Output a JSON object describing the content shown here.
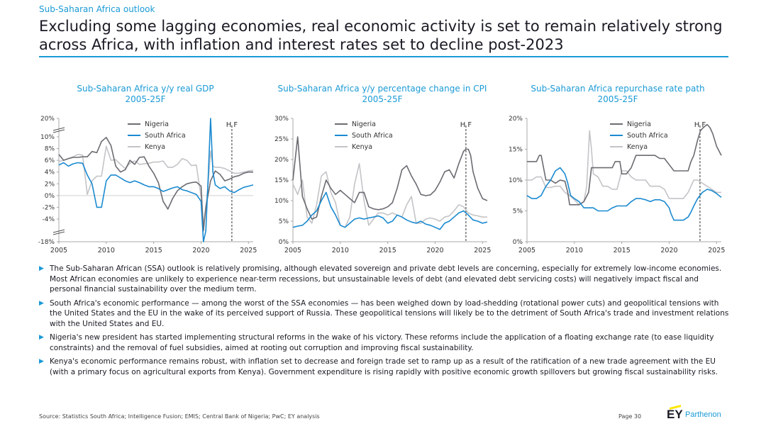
{
  "header": {
    "supertitle": "Sub-Saharan Africa outlook",
    "title": "Excluding some lagging economies, real economic activity is set to remain relatively strong across Africa, with inflation and interest rates set to decline post-2023"
  },
  "colors": {
    "accent": "#1a9ad6",
    "nigeria": "#6b6b72",
    "south_africa": "#1a8ad0",
    "kenya": "#c4c4c8",
    "axis": "#a8a8a8"
  },
  "legend": [
    "Nigeria",
    "South Africa",
    "Kenya"
  ],
  "chart_data": [
    {
      "type": "line",
      "title": "Sub-Saharan Africa y/y real GDP",
      "subtitle": "2005-25F",
      "xlim": [
        2005,
        2025.5
      ],
      "x_ticks": [
        2005,
        2010,
        2015,
        2020,
        2025
      ],
      "y_ticks": [
        "20%",
        "10%",
        "8%",
        "6%",
        "4%",
        "2%",
        "0%",
        "-2%",
        "-4%",
        "-18%"
      ],
      "y_ticks_values": [
        20,
        10,
        8,
        6,
        4,
        2,
        0,
        -2,
        -4,
        -18
      ],
      "y_axis_break": true,
      "forecast_label": "H F",
      "forecast_x": 2023.25,
      "series": [
        {
          "name": "Nigeria",
          "x": [
            2005,
            2005.5,
            2006,
            2006.5,
            2007,
            2007.5,
            2008,
            2008.5,
            2009,
            2009.5,
            2010,
            2010.5,
            2011,
            2011.5,
            2012,
            2012.5,
            2013,
            2013.5,
            2014,
            2014.5,
            2015,
            2015.5,
            2016,
            2016.5,
            2017,
            2017.5,
            2018,
            2018.5,
            2019,
            2019.5,
            2020,
            2020.25,
            2020.5,
            2020.75,
            2021,
            2021.5,
            2022,
            2022.5,
            2023,
            2023.5,
            2024,
            2024.5,
            2025,
            2025.5
          ],
          "y": [
            7,
            6,
            6.3,
            6.5,
            6.5,
            6.6,
            6.6,
            7.5,
            7.3,
            9.2,
            9.9,
            8.5,
            5,
            4,
            4.4,
            6,
            5.3,
            6.5,
            6.6,
            5,
            3.8,
            2.2,
            -1,
            -2.3,
            -0.5,
            0.8,
            1.5,
            2,
            2.2,
            2.3,
            1.6,
            -6,
            -2,
            0.2,
            2.5,
            4.2,
            3.6,
            2.5,
            2.8,
            3.2,
            3.4,
            3.8,
            4,
            4
          ]
        },
        {
          "name": "South Africa",
          "x": [
            2005,
            2005.5,
            2006,
            2006.5,
            2007,
            2007.5,
            2008,
            2008.5,
            2009,
            2009.5,
            2010,
            2010.5,
            2011,
            2011.5,
            2012,
            2012.5,
            2013,
            2013.5,
            2014,
            2014.5,
            2015,
            2015.5,
            2016,
            2016.5,
            2017,
            2017.5,
            2018,
            2018.5,
            2019,
            2019.5,
            2020,
            2020.25,
            2020.5,
            2020.75,
            2021,
            2021.25,
            2021.5,
            2022,
            2022.5,
            2023,
            2023.5,
            2024,
            2024.5,
            2025,
            2025.5
          ],
          "y": [
            5.2,
            5.6,
            5,
            5.4,
            5.6,
            5.5,
            3.5,
            2,
            -2,
            -2,
            2.5,
            3.5,
            3.5,
            3,
            2.5,
            2.2,
            2.5,
            2.2,
            1.8,
            1.5,
            1.5,
            1.2,
            0.7,
            1,
            1.3,
            1.5,
            1,
            0.8,
            0.5,
            0.2,
            -1,
            -17,
            -6,
            3,
            19,
            4,
            1.8,
            1.2,
            1.5,
            0.8,
            0.5,
            1,
            1.4,
            1.6,
            1.8
          ]
        },
        {
          "name": "Kenya",
          "x": [
            2005,
            2005.5,
            2006,
            2006.5,
            2007,
            2007.5,
            2008,
            2008.5,
            2009,
            2009.5,
            2010,
            2010.5,
            2011,
            2011.5,
            2012,
            2012.5,
            2013,
            2013.5,
            2014,
            2014.5,
            2015,
            2015.5,
            2016,
            2016.5,
            2017,
            2017.5,
            2018,
            2018.5,
            2019,
            2019.5,
            2020,
            2020.25,
            2020.5,
            2020.75,
            2021,
            2021.25,
            2021.5,
            2022,
            2022.5,
            2023,
            2023.5,
            2024,
            2024.5,
            2025,
            2025.5
          ],
          "y": [
            5.8,
            6,
            6.3,
            6.6,
            7,
            6.9,
            0.2,
            2.5,
            3.3,
            3.3,
            8.4,
            6,
            6.1,
            5.3,
            4.6,
            5.5,
            5.9,
            5.3,
            5.4,
            5.5,
            5.7,
            5.7,
            5.9,
            4.8,
            4.8,
            5.3,
            6.3,
            6,
            5.1,
            5.2,
            -0.3,
            -5,
            -2,
            2,
            7.6,
            5,
            4.8,
            4.8,
            4.6,
            4.2,
            3.8,
            3.8,
            4,
            4.2,
            4.3
          ]
        }
      ]
    },
    {
      "type": "line",
      "title": "Sub-Saharan Africa y/y percentage change in CPI",
      "subtitle": "2005-25F",
      "xlim": [
        2005,
        2025.5
      ],
      "x_ticks": [
        2005,
        2010,
        2015,
        2020,
        2025
      ],
      "y_ticks": [
        "0%",
        "5%",
        "10%",
        "15%",
        "20%",
        "25%",
        "30%"
      ],
      "y_ticks_values": [
        0,
        5,
        10,
        15,
        20,
        25,
        30
      ],
      "ylim": [
        0,
        30
      ],
      "forecast_label": "H F",
      "forecast_x": 2023.25,
      "series": [
        {
          "name": "Nigeria",
          "x": [
            2005,
            2005.5,
            2006,
            2006.5,
            2007,
            2007.5,
            2008,
            2008.5,
            2009,
            2009.5,
            2010,
            2010.5,
            2011,
            2011.5,
            2012,
            2012.5,
            2013,
            2013.5,
            2014,
            2014.5,
            2015,
            2015.5,
            2016,
            2016.5,
            2017,
            2017.5,
            2018,
            2018.5,
            2019,
            2019.5,
            2020,
            2020.5,
            2021,
            2021.5,
            2022,
            2022.5,
            2023,
            2023.25,
            2023.5,
            2023.75,
            2024,
            2024.5,
            2025,
            2025.5
          ],
          "y": [
            15,
            25.5,
            11,
            8,
            5.5,
            6,
            11,
            15,
            13,
            11.5,
            12.5,
            11.5,
            10.5,
            9.5,
            12,
            12,
            8.5,
            8,
            7.8,
            8,
            8.5,
            9.5,
            13,
            17.5,
            18.5,
            16,
            14,
            11.5,
            11.2,
            11.4,
            12.5,
            14.5,
            17,
            17.5,
            15.5,
            19,
            22,
            22.5,
            22.5,
            21,
            17,
            13,
            10.5,
            10
          ]
        },
        {
          "name": "South Africa",
          "x": [
            2005,
            2005.5,
            2006,
            2006.5,
            2007,
            2007.5,
            2008,
            2008.5,
            2009,
            2009.5,
            2010,
            2010.5,
            2011,
            2011.5,
            2012,
            2012.5,
            2013,
            2013.5,
            2014,
            2014.5,
            2015,
            2015.5,
            2016,
            2016.5,
            2017,
            2017.5,
            2018,
            2018.5,
            2019,
            2019.5,
            2020,
            2020.5,
            2021,
            2021.5,
            2022,
            2022.5,
            2023,
            2023.5,
            2024,
            2024.5,
            2025,
            2025.5
          ],
          "y": [
            3.5,
            3.8,
            4,
            5,
            6.5,
            7.5,
            10,
            12,
            8.5,
            6.5,
            4,
            3.5,
            4.5,
            5.5,
            5.8,
            5.5,
            5.8,
            6,
            6.3,
            5.8,
            4.5,
            5,
            6.5,
            6,
            5.3,
            4.8,
            4.5,
            5,
            4.3,
            4,
            3.5,
            3,
            4.5,
            5,
            6,
            7,
            7.5,
            6.5,
            5.3,
            5,
            4.5,
            4.8
          ]
        },
        {
          "name": "Kenya",
          "x": [
            2005,
            2005.5,
            2006,
            2006.5,
            2007,
            2007.5,
            2008,
            2008.5,
            2009,
            2009.5,
            2010,
            2010.5,
            2011,
            2011.5,
            2012,
            2012.5,
            2013,
            2013.5,
            2014,
            2014.5,
            2015,
            2015.5,
            2016,
            2016.5,
            2017,
            2017.5,
            2018,
            2018.5,
            2019,
            2019.5,
            2020,
            2020.5,
            2021,
            2021.5,
            2022,
            2022.5,
            2023,
            2023.5,
            2024,
            2024.5,
            2025,
            2025.5
          ],
          "y": [
            14,
            11.5,
            15,
            6,
            4.5,
            9,
            16,
            17,
            12,
            9.5,
            4,
            3.5,
            6,
            14,
            19,
            10,
            4,
            5.5,
            7,
            7,
            6.5,
            7,
            6.5,
            6,
            9,
            11,
            4.5,
            4.5,
            5.5,
            5.8,
            5.5,
            5,
            6,
            6.3,
            7.5,
            9,
            8.5,
            7,
            6.5,
            6.3,
            6,
            6
          ]
        }
      ]
    },
    {
      "type": "line",
      "title": "Sub-Saharan Africa repurchase rate path",
      "subtitle": "2005-25F",
      "xlim": [
        2005,
        2025.5
      ],
      "x_ticks": [
        2005,
        2010,
        2015,
        2020,
        2025
      ],
      "y_ticks": [
        "0%",
        "5%",
        "10%",
        "15%",
        "20%"
      ],
      "y_ticks_values": [
        0,
        5,
        10,
        15,
        20
      ],
      "ylim": [
        0,
        20
      ],
      "forecast_label": "H F",
      "forecast_x": 2023.25,
      "series": [
        {
          "name": "Nigeria",
          "x": [
            2005,
            2006,
            2006.3,
            2006.5,
            2007,
            2007.5,
            2008,
            2008.5,
            2009,
            2009.3,
            2009.5,
            2010,
            2010.5,
            2011,
            2011.5,
            2011.8,
            2012,
            2012.5,
            2013,
            2013.5,
            2014,
            2014.3,
            2014.8,
            2015,
            2015.5,
            2016,
            2016.5,
            2017,
            2017.5,
            2018,
            2018.5,
            2019,
            2019.5,
            2020,
            2020.5,
            2021,
            2021.5,
            2022,
            2022.3,
            2022.6,
            2023,
            2023.3,
            2023.6,
            2024,
            2024.3,
            2024.6,
            2025,
            2025.5
          ],
          "y": [
            13,
            13,
            14,
            14,
            10,
            10,
            9.5,
            10,
            9.8,
            8,
            6,
            6,
            6,
            6.5,
            8,
            12,
            12,
            12,
            12,
            12,
            12,
            13,
            13,
            11,
            11,
            12,
            14,
            14,
            14,
            14,
            14,
            13.5,
            13.5,
            12.5,
            11.5,
            11.5,
            11.5,
            11.5,
            13,
            14,
            16.5,
            18,
            18.5,
            19,
            18.5,
            17.5,
            15.5,
            14
          ]
        },
        {
          "name": "South Africa",
          "x": [
            2005,
            2005.5,
            2006,
            2006.5,
            2007,
            2007.5,
            2008,
            2008.5,
            2009,
            2009.3,
            2009.6,
            2010,
            2010.5,
            2011,
            2011.5,
            2012,
            2012.5,
            2013,
            2013.5,
            2014,
            2014.5,
            2015,
            2015.5,
            2016,
            2016.5,
            2017,
            2017.5,
            2018,
            2018.5,
            2019,
            2019.5,
            2020,
            2020.2,
            2020.5,
            2021,
            2021.5,
            2022,
            2022.3,
            2022.6,
            2023,
            2023.5,
            2024,
            2024.5,
            2025,
            2025.5
          ],
          "y": [
            7.5,
            7,
            7,
            7.5,
            9,
            10,
            11.5,
            12,
            11,
            9.5,
            7.5,
            7,
            6.5,
            5.5,
            5.5,
            5.5,
            5,
            5,
            5,
            5.5,
            5.8,
            5.8,
            5.8,
            6.5,
            7,
            7,
            6.8,
            6.5,
            6.8,
            6.8,
            6.5,
            5.5,
            4.5,
            3.5,
            3.5,
            3.5,
            4,
            4.8,
            5.8,
            7,
            8,
            8.5,
            8.3,
            7.8,
            7.2
          ]
        },
        {
          "name": "Kenya",
          "x": [
            2005,
            2005.5,
            2006,
            2006.5,
            2007,
            2007.5,
            2008,
            2008.5,
            2009,
            2009.5,
            2010,
            2010.5,
            2011,
            2011.3,
            2011.6,
            2011.8,
            2012,
            2012.5,
            2013,
            2013.5,
            2014,
            2014.5,
            2015,
            2015.5,
            2016,
            2016.5,
            2017,
            2017.5,
            2018,
            2018.5,
            2019,
            2019.5,
            2020,
            2020.5,
            2021,
            2021.5,
            2022,
            2022.3,
            2022.6,
            2023,
            2023.5,
            2024,
            2024.5,
            2025,
            2025.5
          ],
          "y": [
            10,
            10,
            10.5,
            10.5,
            8.8,
            8.8,
            9,
            9,
            8,
            7.5,
            6.8,
            6,
            6.5,
            9,
            18,
            15,
            11,
            10.5,
            9,
            9,
            8.5,
            8.5,
            11.5,
            11.5,
            10.5,
            10,
            10,
            10,
            9,
            9,
            9,
            8.5,
            7,
            7,
            7,
            7,
            8,
            9,
            10,
            10,
            9.5,
            9,
            8.5,
            8,
            8
          ]
        }
      ]
    }
  ],
  "bullets": [
    "The Sub-Saharan African (SSA) outlook is relatively promising, although elevated sovereign and private debt levels are concerning, especially for extremely low-income economies. Most African economies are unlikely to experience near-term recessions, but unsustainable levels of debt (and elevated debt servicing costs) will negatively impact fiscal and personal financial sustainability over the medium term.",
    "South Africa's economic performance — among the worst of the SSA economies — has been weighed down by load-shedding (rotational power cuts) and geopolitical tensions with the United States and the EU in the wake of its perceived support of Russia. These geopolitical tensions will likely be to the detriment of South Africa's trade and investment relations with the United States and EU.",
    "Nigeria's new president has started implementing structural reforms in the wake of his victory. These reforms include the application of a floating exchange rate (to ease liquidity constraints) and the removal of fuel subsidies, aimed at rooting out corruption and improving fiscal sustainability.",
    "Kenya's economic performance remains robust, with inflation set to decrease and foreign trade set to ramp up as a result of the ratification of a new trade agreement with the EU (with a primary focus on agricultural exports from Kenya). Government expenditure is rising rapidly with positive economic growth spillovers but growing fiscal sustainability risks."
  ],
  "footer": {
    "source": "Source: Statistics South Africa; Intelligence Fusion; EMIS; Central Bank of Nigeria; PwC; EY analysis",
    "page": "Page 30",
    "logo_ey": "EY",
    "logo_brand": "Parthenon"
  }
}
